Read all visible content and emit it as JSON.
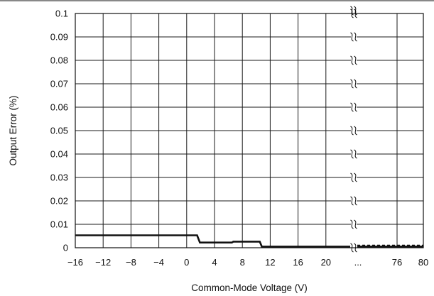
{
  "chart_data": {
    "type": "line",
    "title": "",
    "xlabel": "Common-Mode Voltage (V)",
    "ylabel": "Output Error (%)",
    "ylim": [
      0,
      0.1
    ],
    "y_ticks": [
      "0",
      "0.01",
      "0.02",
      "0.03",
      "0.04",
      "0.05",
      "0.06",
      "0.07",
      "0.08",
      "0.09",
      "0.1"
    ],
    "y_tick_values": [
      0,
      0.01,
      0.02,
      0.03,
      0.04,
      0.05,
      0.06,
      0.07,
      0.08,
      0.09,
      0.1
    ],
    "x_ticks_left": [
      "−16",
      "−12",
      "−8",
      "−4",
      "0",
      "4",
      "8",
      "12",
      "16",
      "20"
    ],
    "x_tick_values_left": [
      -16,
      -12,
      -8,
      -4,
      0,
      4,
      8,
      12,
      16,
      20
    ],
    "x_break_label": "...",
    "x_ticks_right": [
      "76",
      "80"
    ],
    "x_tick_values_right": [
      76,
      80
    ],
    "xlim_left": [
      -16,
      20
    ],
    "x_break_at": 24,
    "xlim_right": [
      72,
      80
    ],
    "grid": true,
    "axis_break": true,
    "series": [
      {
        "segment": "left",
        "x": [
          -16,
          1.5,
          1.9,
          6.5,
          6.7,
          10.5,
          10.8,
          24
        ],
        "y": [
          0.0053,
          0.0053,
          0.0022,
          0.0022,
          0.0026,
          0.0026,
          0.0005,
          0.0005
        ]
      },
      {
        "segment": "right",
        "x": [
          72,
          80
        ],
        "y": [
          0.001,
          0.001
        ]
      }
    ]
  }
}
